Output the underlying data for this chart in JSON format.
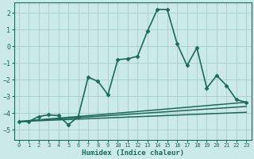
{
  "title": "",
  "xlabel": "Humidex (Indice chaleur)",
  "ylabel": "",
  "bg_color": "#cce9e9",
  "line_color": "#1a6b5a",
  "grid_color": "#b0d5d5",
  "xlim": [
    -0.5,
    23.5
  ],
  "ylim": [
    -5.6,
    2.6
  ],
  "yticks": [
    2,
    1,
    0,
    -1,
    -2,
    -3,
    -4,
    -5
  ],
  "xticks": [
    0,
    1,
    2,
    3,
    4,
    5,
    6,
    7,
    8,
    9,
    10,
    11,
    12,
    13,
    14,
    15,
    16,
    17,
    18,
    19,
    20,
    21,
    22,
    23
  ],
  "lines": [
    {
      "x": [
        0,
        1,
        2,
        3,
        4,
        5,
        6,
        7,
        8,
        9,
        10,
        11,
        12,
        13,
        14,
        15,
        16,
        17,
        18,
        19,
        20,
        21,
        22,
        23
      ],
      "y": [
        -4.5,
        -4.5,
        -4.2,
        -4.1,
        -4.15,
        -4.7,
        -4.2,
        -1.85,
        -2.1,
        -2.9,
        -0.8,
        -0.75,
        -0.6,
        0.9,
        2.2,
        2.2,
        0.15,
        -1.15,
        -0.1,
        -2.5,
        -1.75,
        -2.35,
        -3.2,
        -3.35
      ],
      "marker": true,
      "lw": 1.2
    },
    {
      "x": [
        0,
        23
      ],
      "y": [
        -4.5,
        -3.35
      ],
      "marker": false,
      "lw": 1.1
    },
    {
      "x": [
        0,
        23
      ],
      "y": [
        -4.5,
        -3.6
      ],
      "marker": false,
      "lw": 1.1
    },
    {
      "x": [
        0,
        23
      ],
      "y": [
        -4.5,
        -3.95
      ],
      "marker": false,
      "lw": 1.1
    }
  ]
}
